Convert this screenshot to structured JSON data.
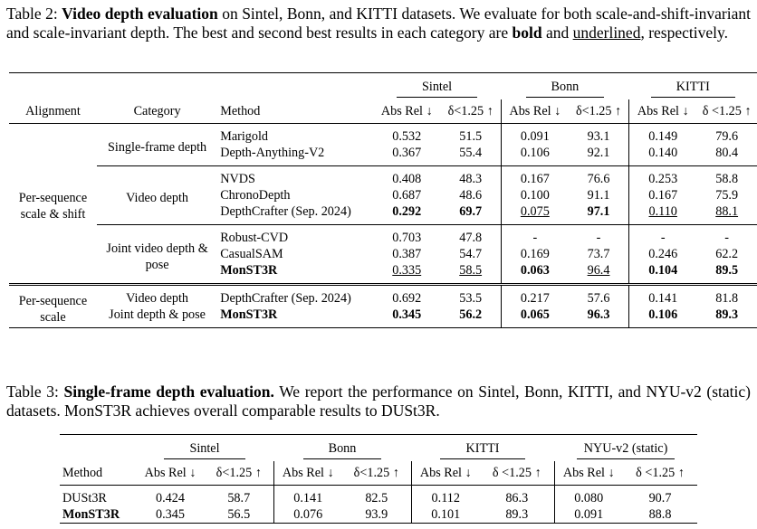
{
  "table2": {
    "caption": {
      "label": "Table 2: ",
      "bold_title": "Video depth evaluation",
      "text1": " on Sintel, Bonn, and KITTI datasets. We evaluate for both scale-and-shift-invariant and scale-invariant depth. The best and second best results in each category are ",
      "bold_word": "bold",
      "text2": " and ",
      "underlined_word": "underlined",
      "text3": ", respectively."
    },
    "groups": [
      "Sintel",
      "Bonn",
      "KITTI"
    ],
    "columns": {
      "alignment": "Alignment",
      "category": "Category",
      "method": "Method",
      "abs_rel": "Abs Rel ↓",
      "delta": "δ<1.25 ↑",
      "delta_spaced": "δ <1.25 ↑"
    },
    "alignments": {
      "shift": "Per-sequence scale & shift",
      "scale": "Per-sequence scale"
    },
    "categories": {
      "single": "Single-frame depth",
      "video": "Video depth",
      "joint": "Joint video depth & pose",
      "video2": "Video depth",
      "joint2": "Joint depth & pose"
    },
    "rows": [
      {
        "method": "Marigold",
        "vals": [
          "0.532",
          "51.5",
          "0.091",
          "93.1",
          "0.149",
          "79.6"
        ]
      },
      {
        "method": "Depth-Anything-V2",
        "vals": [
          "0.367",
          "55.4",
          "0.106",
          "92.1",
          "0.140",
          "80.4"
        ]
      },
      {
        "method": "NVDS",
        "vals": [
          "0.408",
          "48.3",
          "0.167",
          "76.6",
          "0.253",
          "58.8"
        ]
      },
      {
        "method": "ChronoDepth",
        "vals": [
          "0.687",
          "48.6",
          "0.100",
          "91.1",
          "0.167",
          "75.9"
        ]
      },
      {
        "method": "DepthCrafter (Sep. 2024)",
        "vals": [
          "0.292",
          "69.7",
          "0.075",
          "97.1",
          "0.110",
          "88.1"
        ]
      },
      {
        "method": "Robust-CVD",
        "vals": [
          "0.703",
          "47.8",
          "-",
          "-",
          "-",
          "-"
        ]
      },
      {
        "method": "CasualSAM",
        "vals": [
          "0.387",
          "54.7",
          "0.169",
          "73.7",
          "0.246",
          "62.2"
        ]
      },
      {
        "method": "MonST3R",
        "vals": [
          "0.335",
          "58.5",
          "0.063",
          "96.4",
          "0.104",
          "89.5"
        ]
      },
      {
        "method": "DepthCrafter (Sep. 2024)",
        "vals": [
          "0.692",
          "53.5",
          "0.217",
          "57.6",
          "0.141",
          "81.8"
        ]
      },
      {
        "method": "MonST3R",
        "vals": [
          "0.345",
          "56.2",
          "0.065",
          "96.3",
          "0.106",
          "89.3"
        ]
      }
    ]
  },
  "table3": {
    "caption": {
      "label": "Table 3: ",
      "bold_title": "Single-frame depth evaluation.",
      "text": " We report the performance on Sintel, Bonn, KITTI, and NYU-v2 (static) datasets. MonST3R achieves overall comparable results to DUSt3R."
    },
    "groups": [
      "Sintel",
      "Bonn",
      "KITTI",
      "NYU-v2 (static)"
    ],
    "columns": {
      "method": "Method",
      "abs_rel": "Abs Rel ↓",
      "delta": "δ<1.25 ↑",
      "delta_spaced": "δ <1.25 ↑"
    },
    "rows": [
      {
        "method": "DUSt3R",
        "vals": [
          "0.424",
          "58.7",
          "0.141",
          "82.5",
          "0.112",
          "86.3",
          "0.080",
          "90.7"
        ]
      },
      {
        "method": "MonST3R",
        "vals": [
          "0.345",
          "56.5",
          "0.076",
          "93.9",
          "0.101",
          "89.3",
          "0.091",
          "88.8"
        ]
      }
    ]
  }
}
